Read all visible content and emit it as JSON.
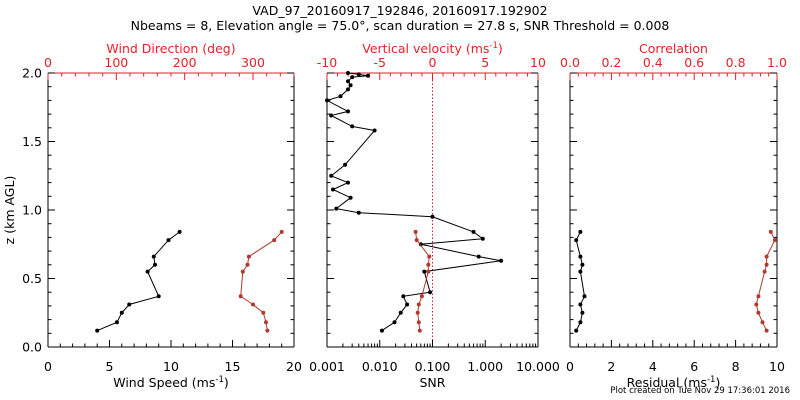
{
  "title_line1": "VAD_97_20160917_192846, 20160917.192902",
  "title_line2": "Nbeams = 8, Elevation angle = 75.0°, scan duration = 27.8 s, SNR Threshold = 0.008",
  "footer": "Plot created on Tue Nov 29 17:36:01 2016",
  "colors": {
    "primary": "#000000",
    "secondary": "#b03a2e",
    "top_axis": "#e8202a",
    "reference_line": "#d0202a"
  },
  "chart_data": [
    {
      "type": "line",
      "panel": "wind",
      "xlabel": "Wind Speed (ms",
      "xlabel_sup": "-1",
      "xlabel_tail": ")",
      "x2label": "Wind Direction (deg)",
      "ylabel": "z (km AGL)",
      "xlim": [
        0,
        20
      ],
      "x2lim": [
        0,
        360
      ],
      "ylim": [
        0,
        2
      ],
      "xticks": [
        "0",
        "5",
        "10",
        "15",
        "20"
      ],
      "x2ticks": [
        "0",
        "100",
        "200",
        "300"
      ],
      "yticks": [
        "0.0",
        "0.5",
        "1.0",
        "1.5",
        "2.0"
      ],
      "series": [
        {
          "axis": "x",
          "color": "#000000",
          "x": [
            4.0,
            5.6,
            6.0,
            6.6,
            9.0,
            8.1,
            8.7,
            8.6,
            9.8,
            10.7
          ],
          "y": [
            0.12,
            0.18,
            0.25,
            0.31,
            0.37,
            0.55,
            0.6,
            0.66,
            0.78,
            0.84
          ]
        },
        {
          "axis": "x2",
          "color": "#b03a2e",
          "x": [
            321,
            319,
            315,
            300,
            282,
            285,
            292,
            294,
            331,
            342
          ],
          "y": [
            0.12,
            0.18,
            0.25,
            0.31,
            0.37,
            0.55,
            0.6,
            0.66,
            0.78,
            0.84
          ]
        }
      ]
    },
    {
      "type": "line",
      "panel": "snr",
      "xscale": "log",
      "xlabel": "SNR",
      "x2label": "Vertical velocity (ms",
      "x2label_sup": "-1",
      "x2label_tail": ")",
      "xlim": [
        0.001,
        10
      ],
      "x2lim": [
        -10,
        10
      ],
      "ylim": [
        0,
        2
      ],
      "xticks": [
        {
          "value": 0.001,
          "label": "0.001"
        },
        {
          "value": 0.01,
          "label": "0.010"
        },
        {
          "value": 0.1,
          "label": "0.100"
        },
        {
          "value": 1,
          "label": "1.000"
        },
        {
          "value": 10,
          "label": "10.000"
        }
      ],
      "x2ticks": [
        "-10",
        "-5",
        "0",
        "5",
        "10"
      ],
      "reference_line_x2": 0,
      "series": [
        {
          "axis": "x",
          "color": "#000000",
          "x": [
            0.011,
            0.019,
            0.025,
            0.033,
            0.028,
            0.09,
            0.07,
            2.0,
            0.75,
            0.06,
            0.9,
            0.6,
            0.1,
            0.004,
            0.0015,
            0.0028,
            0.0013,
            0.0025,
            0.0012,
            0.0022,
            0.008,
            0.003,
            0.0012,
            0.0025,
            0.001,
            0.0018,
            0.0025,
            0.0028,
            0.0025,
            0.003,
            0.006,
            0.004,
            0.0025
          ],
          "y": [
            0.12,
            0.18,
            0.25,
            0.31,
            0.37,
            0.4,
            0.55,
            0.63,
            0.66,
            0.75,
            0.79,
            0.84,
            0.95,
            0.98,
            1.01,
            1.09,
            1.15,
            1.2,
            1.25,
            1.33,
            1.58,
            1.61,
            1.69,
            1.72,
            1.8,
            1.83,
            1.88,
            1.91,
            1.94,
            1.97,
            1.98,
            1.99,
            2.0
          ]
        },
        {
          "axis": "x2",
          "color": "#b03a2e",
          "x": [
            -1.2,
            -1.3,
            -1.4,
            -1.3,
            -1.0,
            -0.4,
            -0.4,
            -0.3,
            -1.5,
            -1.6
          ],
          "y": [
            0.12,
            0.18,
            0.25,
            0.31,
            0.37,
            0.55,
            0.6,
            0.66,
            0.78,
            0.84
          ]
        }
      ]
    },
    {
      "type": "line",
      "panel": "residual",
      "xlabel": "Residual (ms",
      "xlabel_sup": "-1",
      "xlabel_tail": ")",
      "x2label": "Correlation",
      "xlim": [
        0,
        10
      ],
      "x2lim": [
        0,
        1
      ],
      "ylim": [
        0,
        2
      ],
      "xticks": [
        "0",
        "2",
        "4",
        "6",
        "8",
        "10"
      ],
      "x2ticks": [
        "0.0",
        "0.2",
        "0.4",
        "0.6",
        "0.8",
        "1.0"
      ],
      "series": [
        {
          "axis": "x",
          "color": "#000000",
          "x": [
            0.3,
            0.5,
            0.6,
            0.5,
            0.7,
            0.5,
            0.6,
            0.5,
            0.3,
            0.5
          ],
          "y": [
            0.12,
            0.18,
            0.25,
            0.31,
            0.37,
            0.55,
            0.6,
            0.66,
            0.78,
            0.84
          ]
        },
        {
          "axis": "x2",
          "color": "#b03a2e",
          "x": [
            0.95,
            0.93,
            0.91,
            0.9,
            0.91,
            0.94,
            0.95,
            0.95,
            0.99,
            0.97
          ],
          "y": [
            0.12,
            0.18,
            0.25,
            0.31,
            0.37,
            0.55,
            0.6,
            0.66,
            0.78,
            0.84
          ]
        }
      ]
    }
  ]
}
